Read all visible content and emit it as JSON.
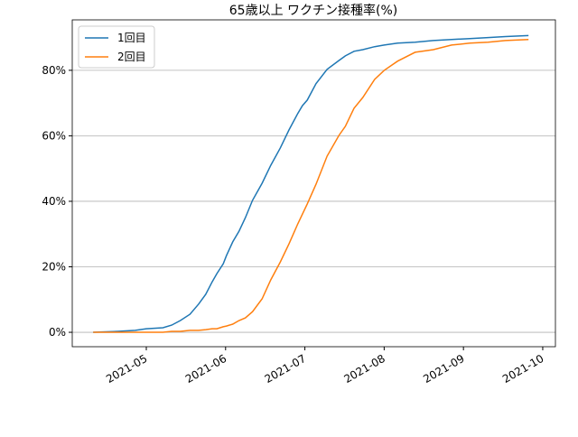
{
  "chart_data": {
    "type": "line",
    "title": "65歳以上 ワクチン接種率(%)",
    "x": [
      4.33,
      4.64,
      4.86,
      5.0,
      5.21,
      5.32,
      5.43,
      5.55,
      5.66,
      5.75,
      5.83,
      5.89,
      5.97,
      6.01,
      6.09,
      6.17,
      6.25,
      6.34,
      6.46,
      6.57,
      6.69,
      6.8,
      6.91,
      6.97,
      7.03,
      7.14,
      7.28,
      7.43,
      7.51,
      7.62,
      7.73,
      7.88,
      8.0,
      8.17,
      8.39,
      8.62,
      8.85,
      9.08,
      9.31,
      9.53,
      9.82
    ],
    "series": [
      {
        "name": "1回目",
        "color": "#1f77b4",
        "values": [
          0,
          0.3,
          0.6,
          1.1,
          1.4,
          2.2,
          3.6,
          5.5,
          8.6,
          11.6,
          15.4,
          17.9,
          20.9,
          23.4,
          27.6,
          30.9,
          35.0,
          40.3,
          45.5,
          51.0,
          56.3,
          61.8,
          66.8,
          69.2,
          70.9,
          75.9,
          80.3,
          83.0,
          84.4,
          85.8,
          86.3,
          87.2,
          87.7,
          88.3,
          88.6,
          89.1,
          89.4,
          89.7,
          90.0,
          90.3,
          90.6
        ]
      },
      {
        "name": "2回目",
        "color": "#ff7f0e",
        "values": [
          0,
          0,
          0,
          0,
          0,
          0.3,
          0.3,
          0.6,
          0.6,
          0.8,
          1.1,
          1.1,
          1.7,
          1.9,
          2.5,
          3.6,
          4.4,
          6.3,
          10.2,
          16.0,
          21.5,
          27.0,
          33.1,
          36.1,
          39.2,
          45.2,
          53.8,
          60.1,
          62.9,
          68.4,
          71.7,
          77.2,
          80.0,
          82.8,
          85.5,
          86.3,
          87.7,
          88.3,
          88.6,
          89.1,
          89.4
        ]
      }
    ],
    "xlim": [
      4.066,
      10.16
    ],
    "xticks": [
      {
        "value": 5,
        "label": "2021-05"
      },
      {
        "value": 6,
        "label": "2021-06"
      },
      {
        "value": 7,
        "label": "2021-07"
      },
      {
        "value": 8,
        "label": "2021-08"
      },
      {
        "value": 9,
        "label": "2021-09"
      },
      {
        "value": 10,
        "label": "2021-10"
      }
    ],
    "ylim": [
      -4.4,
      95.4
    ],
    "yticks": [
      {
        "value": 0,
        "label": "0%"
      },
      {
        "value": 20,
        "label": "20%"
      },
      {
        "value": 40,
        "label": "40%"
      },
      {
        "value": 60,
        "label": "60%"
      },
      {
        "value": 80,
        "label": "80%"
      }
    ],
    "grid": "y",
    "legend": "upper left"
  }
}
